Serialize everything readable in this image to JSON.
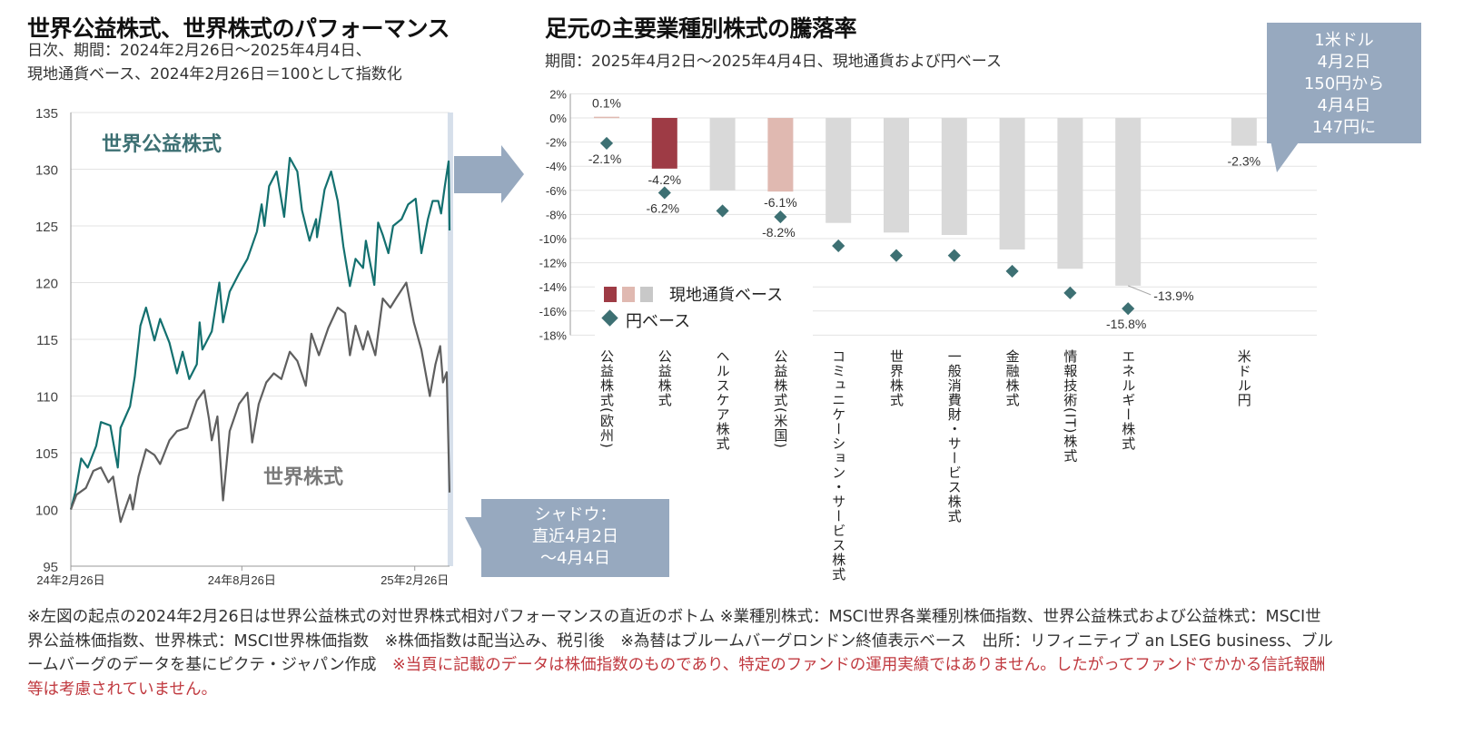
{
  "left_chart": {
    "title": "世界公益株式、世界株式のパフォーマンス",
    "subtitle_line1": "日次、期間：2024年2月26日～2025年4月4日、",
    "subtitle_line2": "現地通貨ベース、2024年2月26日＝100として指数化",
    "shadow_callout": [
      "シャドウ：",
      "直近4月2日",
      "～4月4日"
    ]
  },
  "right_chart": {
    "title": "足元の主要業種別株式の騰落率",
    "subtitle": "期間：2025年4月2日～2025年4月4日、現地通貨および円ベース",
    "fx_callout": [
      "1米ドル",
      "4月2日",
      "150円から",
      "4月4日",
      "147円に"
    ],
    "legend_local": "現地通貨ベース",
    "legend_yen": "円ベース"
  },
  "colors": {
    "utilities_line": "#13706f",
    "world_line": "#5f5f5f",
    "bar_dark_red": "#9e3b45",
    "bar_pink": "#e0b9b1",
    "bar_gray": "#d9d9d9",
    "diamond": "#3d7073",
    "callout": "#97a9bf",
    "arrow": "#97a9bf"
  },
  "chart_data": [
    {
      "type": "line",
      "xlabel": "",
      "ylabel": "",
      "ylim": [
        95,
        135
      ],
      "yticks": [
        "95",
        "100",
        "105",
        "110",
        "115",
        "120",
        "125",
        "130",
        "135"
      ],
      "xticks": [
        {
          "date": "2024-02-26",
          "label": "24年2月26日"
        },
        {
          "date": "2024-08-26",
          "label": "24年8月26日"
        },
        {
          "date": "2025-02-26",
          "label": "25年2月26日"
        }
      ],
      "xlim": [
        "2024-02-26",
        "2025-04-04"
      ],
      "grid": true,
      "shaded_range": [
        "2025-04-02",
        "2025-04-04"
      ],
      "series": [
        {
          "name": "世界公益株式",
          "points": [
            [
              "2024-02-26",
              100.0
            ],
            [
              "2024-03-02",
              101.6
            ],
            [
              "2024-03-08",
              104.5
            ],
            [
              "2024-03-15",
              103.7
            ],
            [
              "2024-03-24",
              105.6
            ],
            [
              "2024-03-29",
              107.7
            ],
            [
              "2024-04-08",
              107.4
            ],
            [
              "2024-04-16",
              103.7
            ],
            [
              "2024-04-19",
              107.2
            ],
            [
              "2024-04-29",
              109.1
            ],
            [
              "2024-05-04",
              111.7
            ],
            [
              "2024-05-10",
              116.2
            ],
            [
              "2024-05-16",
              117.8
            ],
            [
              "2024-05-25",
              114.9
            ],
            [
              "2024-05-31",
              116.8
            ],
            [
              "2024-06-10",
              114.7
            ],
            [
              "2024-06-18",
              112.0
            ],
            [
              "2024-06-24",
              113.9
            ],
            [
              "2024-07-01",
              111.5
            ],
            [
              "2024-07-09",
              112.8
            ],
            [
              "2024-07-12",
              116.5
            ],
            [
              "2024-07-15",
              114.1
            ],
            [
              "2024-07-25",
              115.7
            ],
            [
              "2024-08-02",
              120.0
            ],
            [
              "2024-08-06",
              116.5
            ],
            [
              "2024-08-13",
              119.2
            ],
            [
              "2024-08-23",
              120.8
            ],
            [
              "2024-09-01",
              122.1
            ],
            [
              "2024-09-11",
              124.5
            ],
            [
              "2024-09-16",
              126.9
            ],
            [
              "2024-09-19",
              125.0
            ],
            [
              "2024-09-24",
              128.5
            ],
            [
              "2024-10-02",
              129.8
            ],
            [
              "2024-10-10",
              125.8
            ],
            [
              "2024-10-16",
              131.0
            ],
            [
              "2024-10-24",
              129.8
            ],
            [
              "2024-10-29",
              126.4
            ],
            [
              "2024-11-06",
              123.7
            ],
            [
              "2024-11-13",
              125.6
            ],
            [
              "2024-11-14",
              124.0
            ],
            [
              "2024-11-22",
              128.2
            ],
            [
              "2024-11-29",
              129.8
            ],
            [
              "2024-12-06",
              127.2
            ],
            [
              "2024-12-12",
              123.2
            ],
            [
              "2024-12-19",
              119.7
            ],
            [
              "2024-12-25",
              122.1
            ],
            [
              "2025-01-02",
              121.3
            ],
            [
              "2025-01-05",
              123.7
            ],
            [
              "2025-01-14",
              119.8
            ],
            [
              "2025-01-18",
              125.3
            ],
            [
              "2025-01-23",
              124.2
            ],
            [
              "2025-01-29",
              122.6
            ],
            [
              "2025-02-03",
              125.0
            ],
            [
              "2025-02-12",
              125.6
            ],
            [
              "2025-02-19",
              126.9
            ],
            [
              "2025-02-27",
              127.4
            ],
            [
              "2025-03-05",
              122.6
            ],
            [
              "2025-03-12",
              125.6
            ],
            [
              "2025-03-17",
              127.2
            ],
            [
              "2025-03-23",
              127.2
            ],
            [
              "2025-03-26",
              126.1
            ],
            [
              "2025-03-30",
              128.5
            ],
            [
              "2025-04-03",
              130.7
            ],
            [
              "2025-04-04",
              124.6
            ]
          ]
        },
        {
          "name": "世界株式",
          "points": [
            [
              "2024-02-26",
              100.0
            ],
            [
              "2024-03-03",
              101.3
            ],
            [
              "2024-03-13",
              101.9
            ],
            [
              "2024-03-21",
              103.4
            ],
            [
              "2024-03-29",
              103.7
            ],
            [
              "2024-04-06",
              102.4
            ],
            [
              "2024-04-11",
              102.9
            ],
            [
              "2024-04-19",
              98.9
            ],
            [
              "2024-04-29",
              101.3
            ],
            [
              "2024-05-02",
              100.0
            ],
            [
              "2024-05-08",
              102.9
            ],
            [
              "2024-05-16",
              105.3
            ],
            [
              "2024-05-25",
              104.8
            ],
            [
              "2024-05-31",
              104.0
            ],
            [
              "2024-06-10",
              106.1
            ],
            [
              "2024-06-18",
              106.9
            ],
            [
              "2024-06-29",
              107.2
            ],
            [
              "2024-07-09",
              109.6
            ],
            [
              "2024-07-17",
              110.5
            ],
            [
              "2024-07-22",
              108.0
            ],
            [
              "2024-07-25",
              106.1
            ],
            [
              "2024-07-31",
              108.2
            ],
            [
              "2024-08-06",
              100.8
            ],
            [
              "2024-08-13",
              106.9
            ],
            [
              "2024-08-23",
              109.3
            ],
            [
              "2024-09-01",
              110.3
            ],
            [
              "2024-09-06",
              105.9
            ],
            [
              "2024-09-13",
              109.3
            ],
            [
              "2024-09-21",
              111.2
            ],
            [
              "2024-09-29",
              112.0
            ],
            [
              "2024-10-07",
              111.5
            ],
            [
              "2024-10-16",
              113.9
            ],
            [
              "2024-10-24",
              113.1
            ],
            [
              "2024-11-02",
              110.9
            ],
            [
              "2024-11-08",
              115.5
            ],
            [
              "2024-11-16",
              113.6
            ],
            [
              "2024-11-26",
              116.0
            ],
            [
              "2024-12-06",
              117.8
            ],
            [
              "2024-12-14",
              117.3
            ],
            [
              "2024-12-19",
              113.6
            ],
            [
              "2024-12-25",
              116.2
            ],
            [
              "2025-01-02",
              114.1
            ],
            [
              "2025-01-07",
              115.7
            ],
            [
              "2025-01-15",
              113.6
            ],
            [
              "2025-01-23",
              118.6
            ],
            [
              "2025-01-31",
              117.8
            ],
            [
              "2025-02-06",
              118.6
            ],
            [
              "2025-02-17",
              120.0
            ],
            [
              "2025-02-25",
              116.5
            ],
            [
              "2025-03-05",
              114.1
            ],
            [
              "2025-03-14",
              110.0
            ],
            [
              "2025-03-20",
              112.8
            ],
            [
              "2025-03-25",
              114.4
            ],
            [
              "2025-03-28",
              111.2
            ],
            [
              "2025-04-01",
              112.1
            ],
            [
              "2025-04-04",
              101.5
            ]
          ]
        }
      ]
    },
    {
      "type": "bar",
      "ylim": [
        -18,
        2
      ],
      "yticks": [
        "2%",
        "0%",
        "-2%",
        "-4%",
        "-6%",
        "-8%",
        "-10%",
        "-12%",
        "-14%",
        "-16%",
        "-18%"
      ],
      "grid": true,
      "legend_placement": "bottom-left",
      "categories": [
        "公益株式(欧州)",
        "公益株式",
        "ヘルスケア株式",
        "公益株式(米国)",
        "コミュニケーション・サービス株式",
        "世界株式",
        "一般消費財・サービス株式",
        "金融株式",
        "情報技術(IT)株式",
        "エネルギー株式",
        "米ドル円"
      ],
      "series": [
        {
          "name": "現地通貨ベース",
          "type": "bar",
          "values": [
            0.1,
            -4.2,
            -6.0,
            -6.1,
            -8.7,
            -9.5,
            -9.7,
            -10.9,
            -12.5,
            -13.9,
            -2.3
          ],
          "bar_colors": [
            "bar_pink",
            "bar_dark_red",
            "bar_gray",
            "bar_pink",
            "bar_gray",
            "bar_gray",
            "bar_gray",
            "bar_gray",
            "bar_gray",
            "bar_gray",
            "bar_gray"
          ],
          "data_labels": [
            "0.1%",
            "-4.2%",
            "",
            "-6.1%",
            "",
            "",
            "",
            "",
            "",
            "-13.9%",
            "-2.3%"
          ]
        },
        {
          "name": "円ベース",
          "type": "scatter",
          "marker": "diamond",
          "values": [
            -2.1,
            -6.2,
            -7.7,
            -8.2,
            -10.6,
            -11.4,
            -11.4,
            -12.7,
            -14.5,
            -15.8,
            null
          ],
          "data_labels": [
            "-2.1%",
            "-6.2%",
            "",
            "-8.2%",
            "",
            "",
            "",
            "",
            "",
            "-15.8%",
            ""
          ]
        }
      ]
    }
  ],
  "footnote": {
    "text": "※左図の起点の2024年2月26日は世界公益株式の対世界株式相対パフォーマンスの直近のボトム ※業種別株式：MSCI世界各業種別株価指数、世界公益株式および公益株式：MSCI世界公益株価指数、世界株式：MSCI世界株価指数　※株価指数は配当込み、税引後　※為替はブルームバーグロンドン終値表示ベース　出所：リフィニティブ an LSEG business、ブルームバーグのデータを基にピクテ・ジャパン作成　",
    "disclaimer": "※当頁に記載のデータは株価指数のものであり、特定のファンドの運用実績ではありません。したがってファンドでかかる信託報酬等は考慮されていません。"
  }
}
